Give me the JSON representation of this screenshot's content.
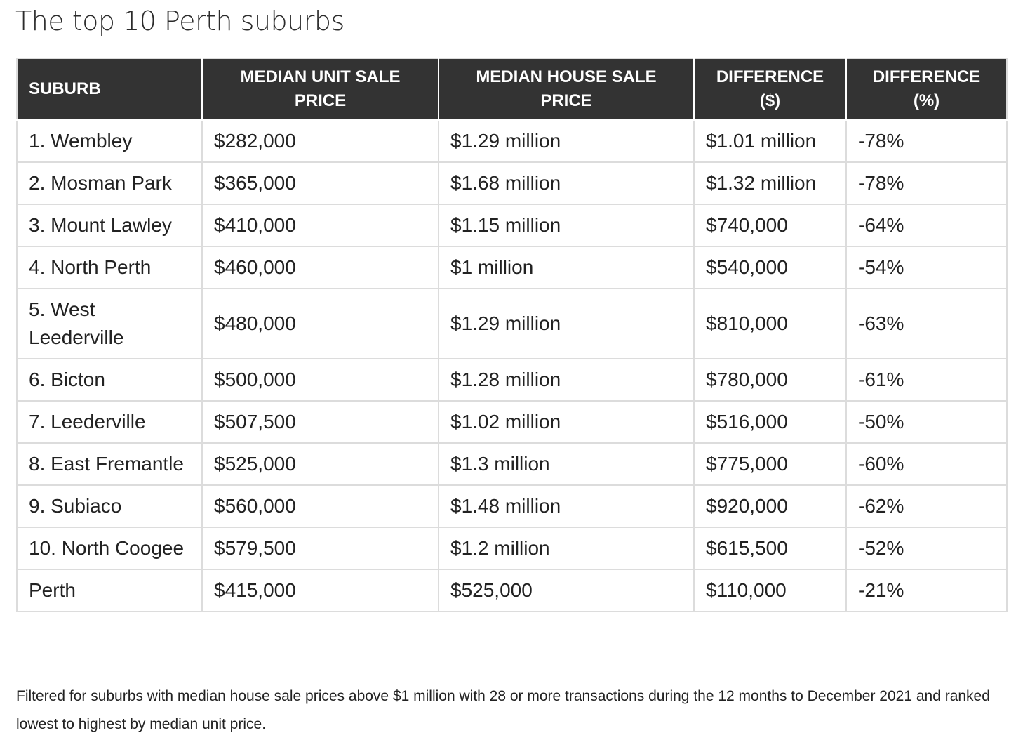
{
  "title": "The top 10 Perth suburbs",
  "table": {
    "headers": [
      "SUBURB",
      "MEDIAN UNIT SALE PRICE",
      "MEDIAN HOUSE SALE PRICE",
      "DIFFERENCE ($)",
      "DIFFERENCE (%)"
    ],
    "rows": [
      [
        "1. Wembley",
        "$282,000",
        "$1.29 million",
        "$1.01 million",
        "-78%"
      ],
      [
        "2. Mosman Park",
        "$365,000",
        "$1.68 million",
        "$1.32 million",
        "-78%"
      ],
      [
        "3. Mount Lawley",
        "$410,000",
        "$1.15 million",
        "$740,000",
        "-64%"
      ],
      [
        "4. North Perth",
        "$460,000",
        "$1 million",
        "$540,000",
        "-54%"
      ],
      [
        "5. West Leederville",
        "$480,000",
        "$1.29 million",
        "$810,000",
        "-63%"
      ],
      [
        "6. Bicton",
        "$500,000",
        "$1.28 million",
        "$780,000",
        "-61%"
      ],
      [
        "7. Leederville",
        "$507,500",
        "$1.02 million",
        "$516,000",
        "-50%"
      ],
      [
        "8. East Fremantle",
        "$525,000",
        "$1.3 million",
        "$775,000",
        "-60%"
      ],
      [
        "9. Subiaco",
        "$560,000",
        "$1.48 million",
        "$920,000",
        "-62%"
      ],
      [
        "10. North Coogee",
        "$579,500",
        "$1.2 million",
        "$615,500",
        "-52%"
      ],
      [
        "Perth",
        "$415,000",
        "$525,000",
        "$110,000",
        "-21%"
      ]
    ]
  },
  "footnote": "Filtered for suburbs with median house sale prices above $1 million with 28 or more transactions during the 12 months to December 2021 and ranked lowest to highest by median unit price.",
  "colors": {
    "header_background": "#333333",
    "header_text": "#ffffff",
    "border": "#dcdcdc",
    "body_text": "#222222"
  }
}
